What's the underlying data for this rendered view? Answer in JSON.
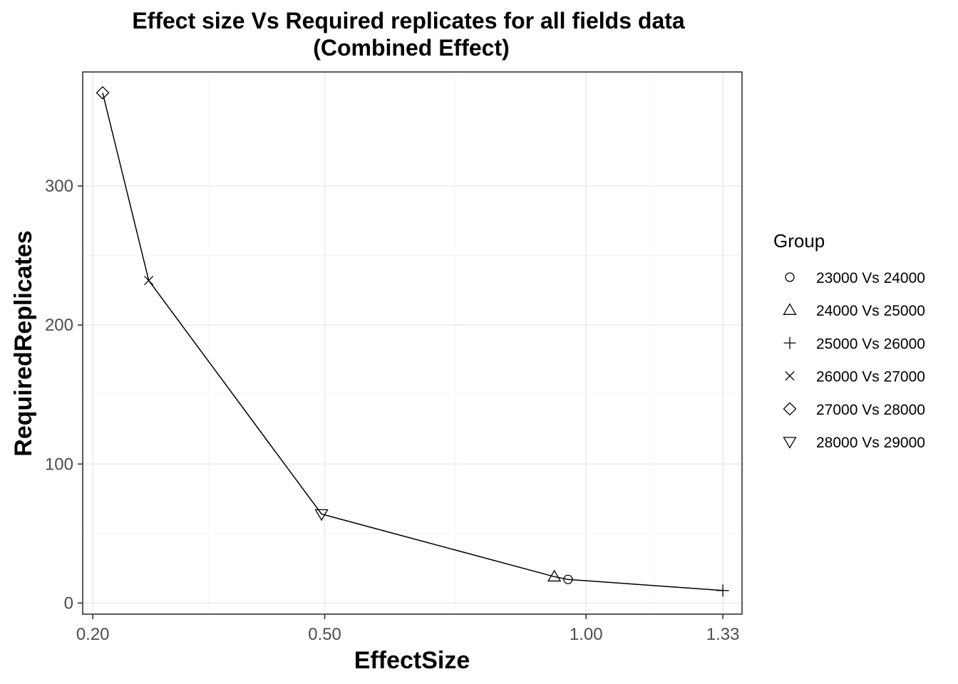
{
  "chart_data": {
    "type": "line",
    "title": "Effect size Vs Required replicates for all fields data",
    "subtitle": "(Combined Effect)",
    "xlabel": "EffectSize",
    "ylabel": "RequiredReplicates",
    "x_scale": "sqrt",
    "xlim": [
      0.19,
      1.38
    ],
    "ylim": [
      -8,
      382
    ],
    "x_ticks": [
      0.2,
      0.5,
      1.0,
      1.33
    ],
    "x_tick_labels": [
      "0.20",
      "0.50",
      "1.00",
      "1.33"
    ],
    "y_ticks": [
      0,
      100,
      200,
      300
    ],
    "y_tick_labels": [
      "0",
      "100",
      "200",
      "300"
    ],
    "grid": true,
    "legend_title": "Group",
    "legend_position": "right",
    "line_color": "#000000",
    "series": [
      {
        "name": "23000 Vs 24000",
        "shape": "circle",
        "x": 0.96,
        "y": 17
      },
      {
        "name": "24000 Vs 25000",
        "shape": "triangle-up",
        "x": 0.93,
        "y": 19
      },
      {
        "name": "25000 Vs 26000",
        "shape": "plus",
        "x": 1.33,
        "y": 9
      },
      {
        "name": "26000 Vs 27000",
        "shape": "cross",
        "x": 0.26,
        "y": 232
      },
      {
        "name": "27000 Vs 28000",
        "shape": "diamond",
        "x": 0.21,
        "y": 367
      },
      {
        "name": "28000 Vs 29000",
        "shape": "triangle-down",
        "x": 0.495,
        "y": 64
      }
    ]
  }
}
